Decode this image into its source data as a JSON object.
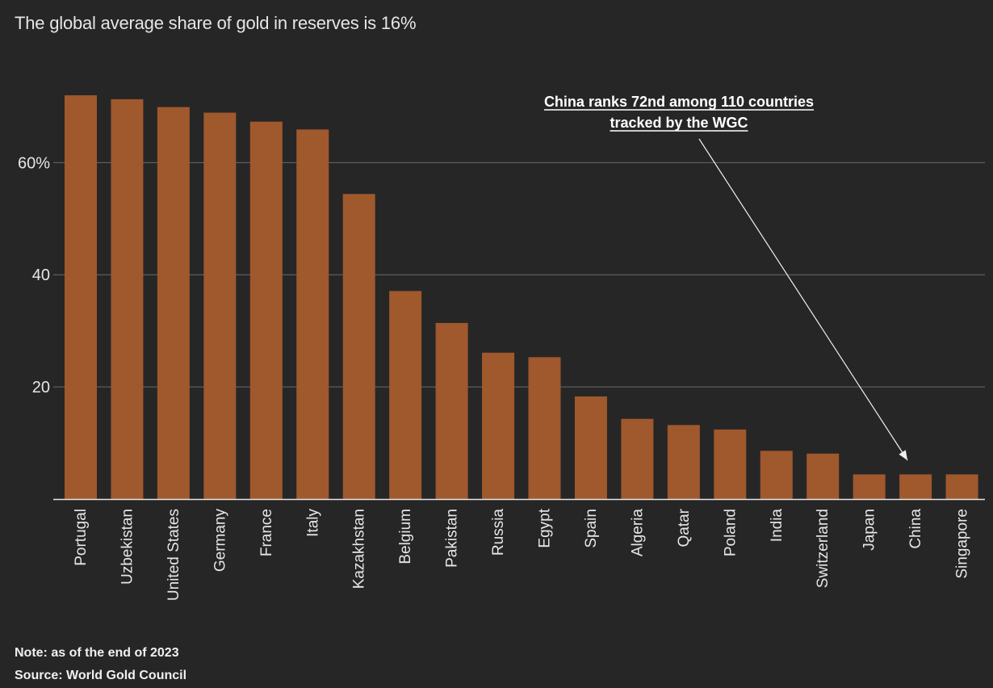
{
  "chart_data": {
    "type": "bar",
    "title": "The global average share of gold in reserves is 16%",
    "categories": [
      "Portugal",
      "Uzbekistan",
      "United States",
      "Germany",
      "France",
      "Italy",
      "Kazakhstan",
      "Belgium",
      "Pakistan",
      "Russia",
      "Egypt",
      "Spain",
      "Algeria",
      "Qatar",
      "Poland",
      "India",
      "Switzerland",
      "Japan",
      "China",
      "Singapore"
    ],
    "values": [
      72,
      71.3,
      69.9,
      68.9,
      67.3,
      65.9,
      54.4,
      37.1,
      31.4,
      26.1,
      25.3,
      18.3,
      14.3,
      13.2,
      12.4,
      8.6,
      8.1,
      4.4,
      4.4,
      4.4
    ],
    "ylim": [
      0,
      72
    ],
    "yticks": [
      {
        "value": 20,
        "label": "20"
      },
      {
        "value": 40,
        "label": "40"
      },
      {
        "value": 60,
        "label": "60%"
      }
    ],
    "bar_color": "#a0582d",
    "grid": true,
    "annotation": {
      "text_line1": "China ranks 72nd among 110 countries",
      "text_line2": "tracked by the WGC",
      "target": "China"
    }
  },
  "footer": {
    "note": "Note: as of the end of 2023",
    "source": "Source: World Gold Council"
  }
}
